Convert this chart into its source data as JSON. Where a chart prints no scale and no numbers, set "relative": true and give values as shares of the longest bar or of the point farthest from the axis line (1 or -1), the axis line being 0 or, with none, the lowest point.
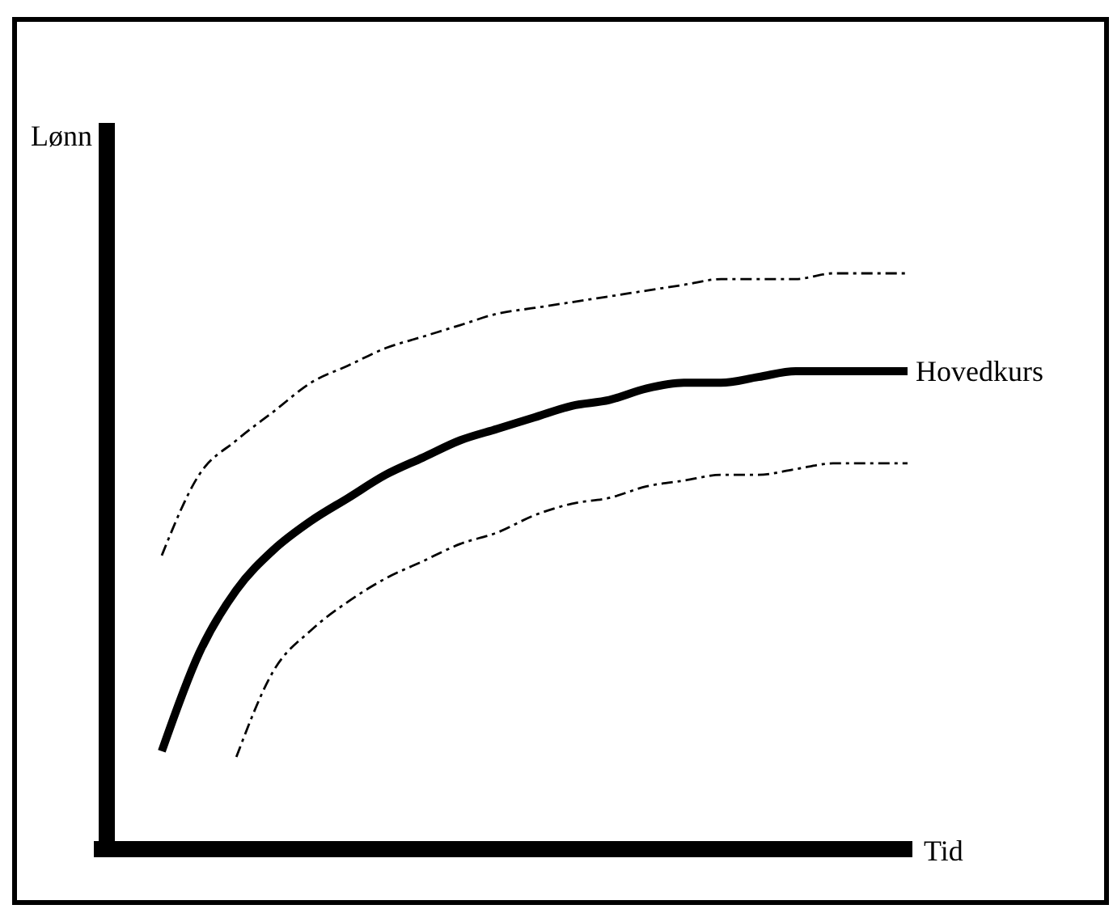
{
  "chart_data": {
    "type": "line",
    "relative": true,
    "xlabel": "Tid",
    "ylabel": "Lønn",
    "legend": false,
    "grid": false,
    "marker": "none",
    "categories": [
      null,
      null,
      null,
      null,
      null,
      null,
      null,
      null,
      null,
      null,
      null,
      null,
      null,
      null,
      null,
      null,
      null,
      null,
      null,
      null,
      null
    ],
    "series": [
      {
        "name": "Hovedkurs",
        "color": "#000000",
        "line_style": "solid",
        "values": [
          0.17,
          0.34,
          0.45,
          0.52,
          0.57,
          0.61,
          0.65,
          0.68,
          0.71,
          0.73,
          0.75,
          0.77,
          0.78,
          0.8,
          0.81,
          0.81,
          0.82,
          0.83,
          0.83,
          0.83,
          0.83
        ]
      },
      {
        "color": "#000000",
        "line_style": "dashed",
        "values": [
          0.51,
          0.65,
          0.71,
          0.76,
          0.81,
          0.84,
          0.87,
          0.89,
          0.91,
          0.93,
          0.94,
          0.95,
          0.96,
          0.97,
          0.98,
          0.99,
          0.99,
          0.99,
          1.0,
          1.0,
          1.0
        ]
      },
      {
        "color": "#000000",
        "line_style": "dashed",
        "values": [
          null,
          null,
          0.16,
          0.31,
          0.38,
          0.43,
          0.47,
          0.5,
          0.53,
          0.55,
          0.58,
          0.6,
          0.61,
          0.63,
          0.64,
          0.65,
          0.65,
          0.66,
          0.67,
          0.67,
          0.67
        ]
      }
    ]
  }
}
